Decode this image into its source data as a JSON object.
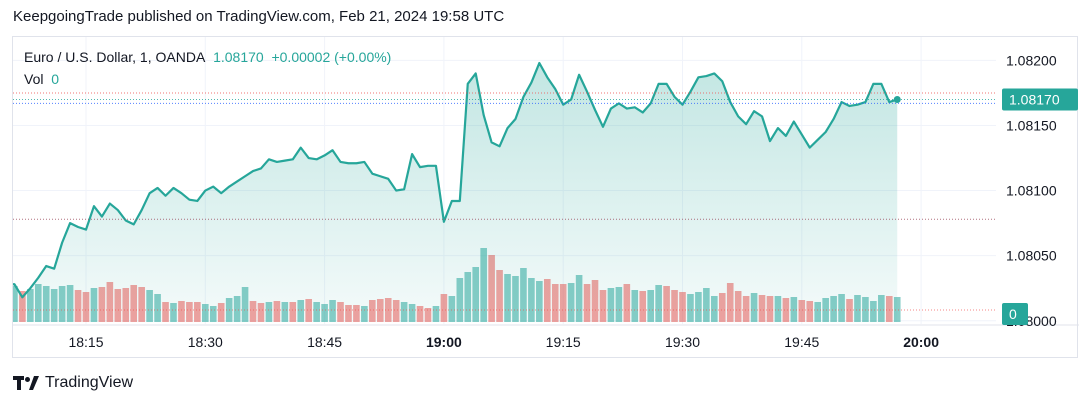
{
  "header": {
    "published_line": "KeepgoingTrade published on TradingView.com, Feb 21, 2024 19:58 UTC"
  },
  "legend": {
    "symbol": "Euro / U.S. Dollar, 1, OANDA",
    "last_price": "1.08170",
    "change": "+0.00002 (+0.00%)",
    "vol_label": "Vol",
    "vol_value": "0"
  },
  "footer": {
    "brand": "TradingView"
  },
  "colors": {
    "line": "#26a69a",
    "area_fill": "#26a69a",
    "vol_up": "#26a69a",
    "vol_down": "#ef5350",
    "grid": "#f0f3fa",
    "price_badge": "#26a69a"
  },
  "chart_data": {
    "type": "area",
    "price_axis": {
      "labels": [
        "1.08200",
        "1.08150",
        "1.08100",
        "1.08050",
        "1.08000"
      ],
      "ylim": [
        1.07999,
        1.08218
      ],
      "last_price_label": "1.08170",
      "volume_label": "0"
    },
    "time_axis": {
      "labels": [
        "18:15",
        "18:30",
        "18:45",
        "19:00",
        "19:15",
        "19:30",
        "19:45",
        "20:00"
      ],
      "bold_labels": [
        "19:00",
        "20:00"
      ]
    },
    "reference_lines": [
      1.08175,
      1.0817,
      1.08167,
      1.08078
    ],
    "series": [
      {
        "x_start": "18:05",
        "interval_minutes": 1,
        "close": [
          1.08028,
          1.08028,
          1.08018,
          1.08025,
          1.08033,
          1.08042,
          1.0804,
          1.0806,
          1.08075,
          1.08072,
          1.0807,
          1.08088,
          1.0808,
          1.0809,
          1.08085,
          1.08077,
          1.08074,
          1.08085,
          1.08098,
          1.08102,
          1.08096,
          1.08102,
          1.08098,
          1.08093,
          1.08092,
          1.081,
          1.08103,
          1.08098,
          1.08103,
          1.08107,
          1.08111,
          1.08115,
          1.08117,
          1.08124,
          1.08122,
          1.08123,
          1.08124,
          1.08133,
          1.08125,
          1.08124,
          1.08127,
          1.08131,
          1.08122,
          1.08121,
          1.08121,
          1.08122,
          1.08113,
          1.08111,
          1.08109,
          1.081,
          1.08101,
          1.08128,
          1.08118,
          1.08119,
          1.08119,
          1.08076,
          1.08092,
          1.08092,
          1.08182,
          1.0819,
          1.08158,
          1.08137,
          1.08134,
          1.08148,
          1.08155,
          1.08172,
          1.08183,
          1.08198,
          1.08187,
          1.08178,
          1.08166,
          1.0817,
          1.08189,
          1.08176,
          1.08162,
          1.08149,
          1.08163,
          1.08167,
          1.08163,
          1.08164,
          1.0816,
          1.08167,
          1.08182,
          1.08182,
          1.08172,
          1.08166,
          1.08176,
          1.08187,
          1.08188,
          1.0819,
          1.08184,
          1.08168,
          1.08157,
          1.08151,
          1.08161,
          1.08157,
          1.08138,
          1.08148,
          1.08142,
          1.08153,
          1.08143,
          1.08133,
          1.08139,
          1.08145,
          1.08155,
          1.08168,
          1.08165,
          1.08166,
          1.08168,
          1.08182,
          1.08182,
          1.08168,
          1.0817
        ],
        "volume_rel": [
          0.42,
          0.36,
          0.31,
          0.33,
          0.38,
          0.36,
          0.33,
          0.36,
          0.37,
          0.32,
          0.3,
          0.34,
          0.35,
          0.4,
          0.33,
          0.34,
          0.37,
          0.35,
          0.32,
          0.28,
          0.2,
          0.19,
          0.21,
          0.2,
          0.2,
          0.18,
          0.16,
          0.19,
          0.24,
          0.26,
          0.35,
          0.21,
          0.19,
          0.2,
          0.21,
          0.2,
          0.2,
          0.22,
          0.23,
          0.2,
          0.18,
          0.22,
          0.2,
          0.17,
          0.17,
          0.16,
          0.22,
          0.23,
          0.24,
          0.22,
          0.2,
          0.18,
          0.16,
          0.14,
          0.16,
          0.28,
          0.26,
          0.44,
          0.5,
          0.55,
          0.74,
          0.67,
          0.52,
          0.48,
          0.46,
          0.54,
          0.44,
          0.41,
          0.43,
          0.38,
          0.38,
          0.39,
          0.47,
          0.38,
          0.42,
          0.32,
          0.34,
          0.35,
          0.38,
          0.32,
          0.31,
          0.32,
          0.37,
          0.36,
          0.32,
          0.3,
          0.28,
          0.3,
          0.34,
          0.26,
          0.29,
          0.39,
          0.31,
          0.26,
          0.29,
          0.27,
          0.26,
          0.26,
          0.24,
          0.25,
          0.22,
          0.21,
          0.2,
          0.24,
          0.26,
          0.28,
          0.23,
          0.27,
          0.25,
          0.21,
          0.27,
          0.26,
          0.25
        ],
        "volume_direction": [
          "down",
          "up",
          "down",
          "up",
          "up",
          "up",
          "up",
          "up",
          "up",
          "down",
          "down",
          "up",
          "down",
          "down",
          "down",
          "down",
          "down",
          "down",
          "up",
          "up",
          "down",
          "up",
          "down",
          "down",
          "down",
          "up",
          "up",
          "down",
          "up",
          "up",
          "up",
          "down",
          "down",
          "up",
          "down",
          "up",
          "down",
          "up",
          "down",
          "up",
          "up",
          "up",
          "down",
          "down",
          "down",
          "up",
          "down",
          "down",
          "down",
          "down",
          "up",
          "up",
          "down",
          "down",
          "up",
          "down",
          "up",
          "up",
          "up",
          "up",
          "up",
          "down",
          "down",
          "up",
          "up",
          "up",
          "up",
          "up",
          "down",
          "down",
          "down",
          "up",
          "up",
          "down",
          "down",
          "down",
          "up",
          "up",
          "down",
          "up",
          "down",
          "up",
          "up",
          "down",
          "down",
          "down",
          "up",
          "up",
          "up",
          "up",
          "down",
          "down",
          "down",
          "down",
          "up",
          "down",
          "down",
          "up",
          "down",
          "up",
          "down",
          "down",
          "up",
          "up",
          "up",
          "up",
          "down",
          "up",
          "up",
          "up",
          "up",
          "down",
          "up"
        ]
      }
    ]
  }
}
